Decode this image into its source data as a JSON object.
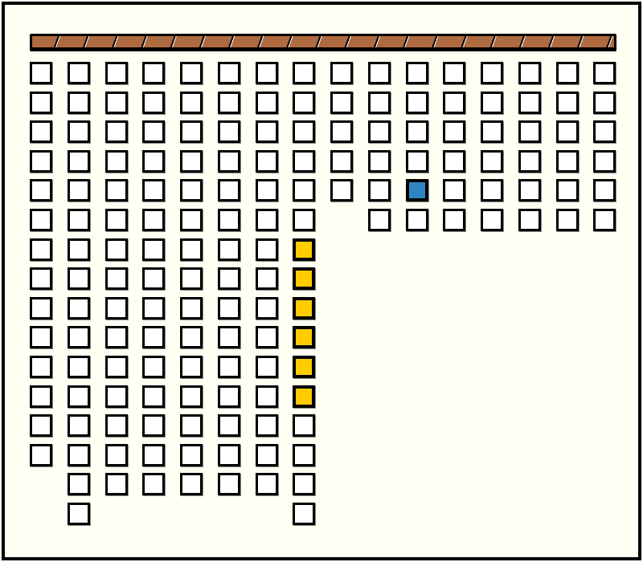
{
  "board": {
    "column_heights": [
      14,
      16,
      15,
      15,
      15,
      15,
      15,
      16,
      5,
      6,
      6,
      6,
      6,
      6,
      6,
      6
    ],
    "empty_color": "#ffffff",
    "bar_color": "#b06a40",
    "highlighted_cells": [
      {
        "col": 7,
        "row": 6,
        "color": "#ffcc00"
      },
      {
        "col": 7,
        "row": 7,
        "color": "#ffcc00"
      },
      {
        "col": 7,
        "row": 8,
        "color": "#ffcc00"
      },
      {
        "col": 7,
        "row": 9,
        "color": "#ffcc00"
      },
      {
        "col": 7,
        "row": 10,
        "color": "#ffcc00"
      },
      {
        "col": 7,
        "row": 11,
        "color": "#ffcc00"
      },
      {
        "col": 10,
        "row": 4,
        "color": "#2e86c1",
        "selected": true
      }
    ]
  }
}
